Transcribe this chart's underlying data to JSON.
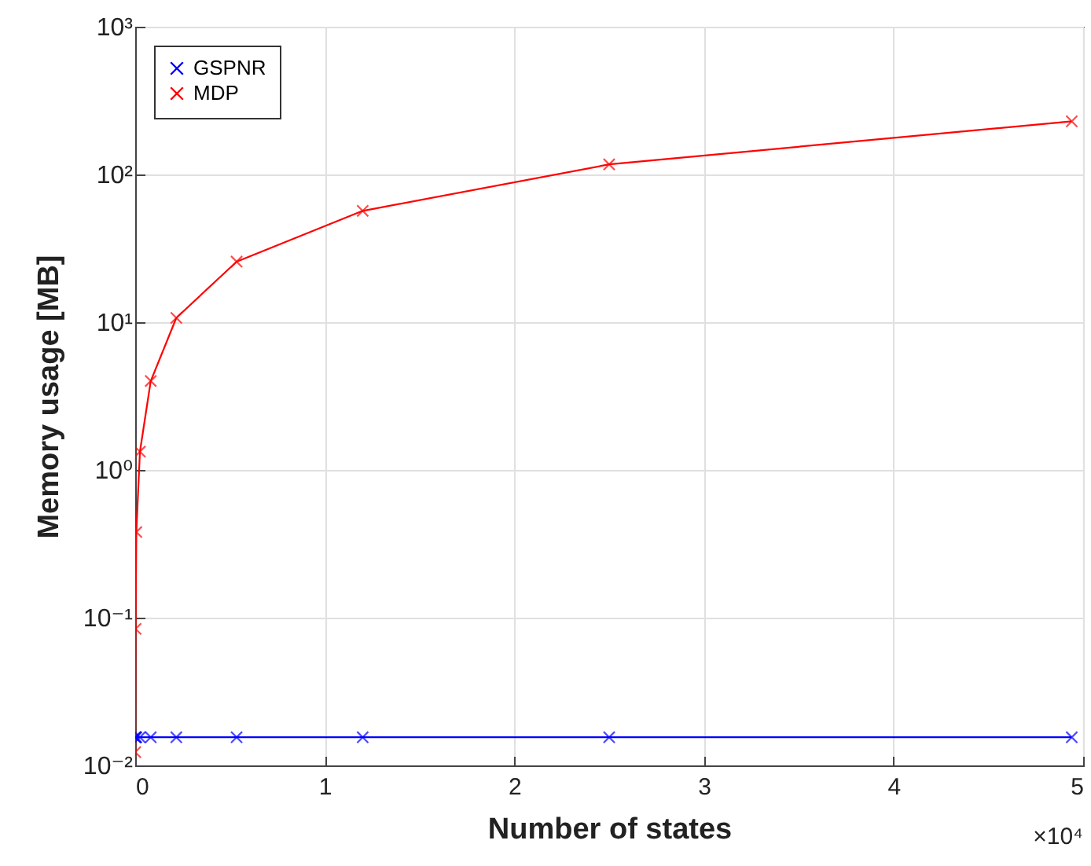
{
  "chart_data": {
    "type": "line",
    "xlabel": "Number of states",
    "ylabel": "Memory usage [MB]",
    "x": [
      0.0005,
      0.002,
      0.006,
      0.025,
      0.082,
      0.217,
      0.535,
      1.2,
      2.5,
      4.94
    ],
    "series": [
      {
        "name": "GSPNR",
        "color": "#0000ff",
        "values": [
          0.0155,
          0.0155,
          0.0155,
          0.0155,
          0.0155,
          0.0155,
          0.0155,
          0.0155,
          0.0155,
          0.0155
        ]
      },
      {
        "name": "MDP",
        "color": "#ff0000",
        "values": [
          0.0123,
          0.084,
          0.38,
          1.33,
          4.0,
          10.7,
          25.7,
          56.7,
          117,
          229
        ]
      }
    ],
    "log": "y",
    "xlim": [
      0,
      5
    ],
    "ylim": [
      0.01,
      1000
    ],
    "xticks": [
      0,
      1,
      2,
      3,
      4,
      5
    ],
    "yticks": [
      {
        "value": 0.01,
        "label": "10⁻²"
      },
      {
        "value": 0.1,
        "label": "10⁻¹"
      },
      {
        "value": 1,
        "label": "10⁰"
      },
      {
        "value": 10,
        "label": "10¹"
      },
      {
        "value": 100,
        "label": "10²"
      },
      {
        "value": 1000,
        "label": "10³"
      }
    ],
    "annotations": [
      "×10⁴"
    ],
    "grid": true,
    "legend": "top left",
    "marker": "cross",
    "line_style": "solid"
  }
}
